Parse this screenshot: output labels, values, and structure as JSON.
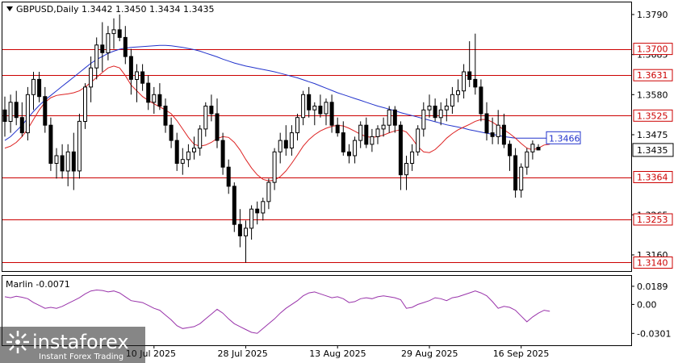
{
  "header": {
    "symbol": "GBPUSD,Daily",
    "ohlc": "1.3442 1.3450 1.3434 1.3435"
  },
  "indicator": {
    "label": "Marlin -0.0071",
    "ticks": [
      "0.0189",
      "0.00",
      "-0.0301"
    ]
  },
  "watermark": {
    "brand": "instaforex",
    "tagline": "Instant Forex Trading"
  },
  "colors": {
    "up_candle": "#ffffff",
    "down_candle": "#000000",
    "ma_blue": "#2233cc",
    "ma_red": "#dd2222",
    "level_line": "#cc0000",
    "oscillator": "#9933aa"
  },
  "chart_data": {
    "type": "candlestick",
    "price_ticks": [
      "1.3790",
      "1.3685",
      "1.3580",
      "1.3475",
      "1.3265",
      "1.3160"
    ],
    "levels": [
      {
        "value": 1.37,
        "label": "1.3700"
      },
      {
        "value": 1.3631,
        "label": "1.3631"
      },
      {
        "value": 1.3525,
        "label": "1.3525"
      },
      {
        "value": 1.3364,
        "label": "1.3364"
      },
      {
        "value": 1.3253,
        "label": "1.3253"
      },
      {
        "value": 1.314,
        "label": "1.3140"
      }
    ],
    "current_price": {
      "value": 1.3435,
      "label": "1.3435"
    },
    "ma_value_label": {
      "value": 1.3466,
      "label": "1.3466"
    },
    "x_labels": [
      "10 Jul 2025",
      "28 Jul 2025",
      "13 Aug 2025",
      "29 Aug 2025",
      "16 Sep 2025"
    ],
    "ohlc": [
      [
        1.354,
        1.3575,
        1.347,
        1.351
      ],
      [
        1.351,
        1.358,
        1.348,
        1.356
      ],
      [
        1.356,
        1.359,
        1.35,
        1.352
      ],
      [
        1.352,
        1.356,
        1.347,
        1.348
      ],
      [
        1.348,
        1.36,
        1.346,
        1.358
      ],
      [
        1.358,
        1.364,
        1.354,
        1.362
      ],
      [
        1.362,
        1.364,
        1.356,
        1.3575
      ],
      [
        1.3575,
        1.36,
        1.348,
        1.35
      ],
      [
        1.35,
        1.352,
        1.338,
        1.34
      ],
      [
        1.34,
        1.344,
        1.336,
        1.342
      ],
      [
        1.342,
        1.345,
        1.336,
        1.338
      ],
      [
        1.338,
        1.345,
        1.334,
        1.343
      ],
      [
        1.343,
        1.348,
        1.333,
        1.338
      ],
      [
        1.338,
        1.353,
        1.336,
        1.351
      ],
      [
        1.351,
        1.361,
        1.349,
        1.36
      ],
      [
        1.36,
        1.368,
        1.356,
        1.365
      ],
      [
        1.365,
        1.373,
        1.362,
        1.371
      ],
      [
        1.371,
        1.377,
        1.364,
        1.369
      ],
      [
        1.369,
        1.376,
        1.367,
        1.374
      ],
      [
        1.374,
        1.378,
        1.37,
        1.375
      ],
      [
        1.375,
        1.379,
        1.372,
        1.373
      ],
      [
        1.373,
        1.376,
        1.366,
        1.368
      ],
      [
        1.368,
        1.37,
        1.358,
        1.362
      ],
      [
        1.362,
        1.366,
        1.356,
        1.364
      ],
      [
        1.364,
        1.366,
        1.359,
        1.361
      ],
      [
        1.361,
        1.363,
        1.354,
        1.356
      ],
      [
        1.356,
        1.36,
        1.353,
        1.358
      ],
      [
        1.358,
        1.361,
        1.354,
        1.355
      ],
      [
        1.355,
        1.357,
        1.348,
        1.35
      ],
      [
        1.35,
        1.352,
        1.344,
        1.346
      ],
      [
        1.346,
        1.348,
        1.338,
        1.34
      ],
      [
        1.34,
        1.344,
        1.337,
        1.341
      ],
      [
        1.341,
        1.345,
        1.339,
        1.343
      ],
      [
        1.343,
        1.347,
        1.341,
        1.344
      ],
      [
        1.344,
        1.35,
        1.342,
        1.349
      ],
      [
        1.349,
        1.356,
        1.347,
        1.355
      ],
      [
        1.355,
        1.358,
        1.351,
        1.353
      ],
      [
        1.353,
        1.357,
        1.344,
        1.346
      ],
      [
        1.346,
        1.348,
        1.337,
        1.339
      ],
      [
        1.339,
        1.341,
        1.332,
        1.334
      ],
      [
        1.334,
        1.335,
        1.322,
        1.324
      ],
      [
        1.324,
        1.328,
        1.318,
        1.321
      ],
      [
        1.321,
        1.325,
        1.314,
        1.323
      ],
      [
        1.323,
        1.329,
        1.32,
        1.328
      ],
      [
        1.328,
        1.33,
        1.324,
        1.327
      ],
      [
        1.327,
        1.331,
        1.325,
        1.33
      ],
      [
        1.33,
        1.336,
        1.328,
        1.335
      ],
      [
        1.335,
        1.344,
        1.333,
        1.343
      ],
      [
        1.343,
        1.348,
        1.34,
        1.346
      ],
      [
        1.346,
        1.35,
        1.342,
        1.344
      ],
      [
        1.344,
        1.35,
        1.342,
        1.348
      ],
      [
        1.348,
        1.353,
        1.346,
        1.352
      ],
      [
        1.352,
        1.359,
        1.35,
        1.358
      ],
      [
        1.358,
        1.36,
        1.352,
        1.354
      ],
      [
        1.354,
        1.356,
        1.35,
        1.355
      ],
      [
        1.355,
        1.358,
        1.352,
        1.353
      ],
      [
        1.353,
        1.357,
        1.35,
        1.356
      ],
      [
        1.356,
        1.358,
        1.348,
        1.35
      ],
      [
        1.35,
        1.352,
        1.347,
        1.348
      ],
      [
        1.348,
        1.351,
        1.342,
        1.343
      ],
      [
        1.343,
        1.345,
        1.34,
        1.342
      ],
      [
        1.342,
        1.347,
        1.34,
        1.346
      ],
      [
        1.346,
        1.351,
        1.344,
        1.35
      ],
      [
        1.35,
        1.352,
        1.344,
        1.345
      ],
      [
        1.345,
        1.349,
        1.343,
        1.347
      ],
      [
        1.347,
        1.35,
        1.345,
        1.349
      ],
      [
        1.349,
        1.352,
        1.347,
        1.35
      ],
      [
        1.35,
        1.355,
        1.348,
        1.354
      ],
      [
        1.354,
        1.355,
        1.348,
        1.35
      ],
      [
        1.35,
        1.351,
        1.333,
        1.337
      ],
      [
        1.337,
        1.342,
        1.333,
        1.34
      ],
      [
        1.34,
        1.345,
        1.338,
        1.343
      ],
      [
        1.343,
        1.35,
        1.342,
        1.349
      ],
      [
        1.349,
        1.356,
        1.347,
        1.354
      ],
      [
        1.354,
        1.358,
        1.352,
        1.355
      ],
      [
        1.355,
        1.357,
        1.351,
        1.352
      ],
      [
        1.352,
        1.356,
        1.35,
        1.354
      ],
      [
        1.354,
        1.357,
        1.351,
        1.355
      ],
      [
        1.355,
        1.36,
        1.353,
        1.358
      ],
      [
        1.358,
        1.362,
        1.356,
        1.359
      ],
      [
        1.359,
        1.366,
        1.357,
        1.364
      ],
      [
        1.364,
        1.372,
        1.36,
        1.362
      ],
      [
        1.362,
        1.374,
        1.358,
        1.36
      ],
      [
        1.36,
        1.362,
        1.351,
        1.353
      ],
      [
        1.353,
        1.356,
        1.346,
        1.348
      ],
      [
        1.348,
        1.352,
        1.345,
        1.347
      ],
      [
        1.347,
        1.354,
        1.345,
        1.35
      ],
      [
        1.35,
        1.353,
        1.344,
        1.345
      ],
      [
        1.345,
        1.346,
        1.338,
        1.342
      ],
      [
        1.342,
        1.344,
        1.331,
        1.333
      ],
      [
        1.333,
        1.34,
        1.331,
        1.339
      ],
      [
        1.339,
        1.344,
        1.337,
        1.343
      ],
      [
        1.343,
        1.346,
        1.341,
        1.345
      ],
      [
        1.3442,
        1.345,
        1.3434,
        1.3435
      ]
    ],
    "ma_slow": [
      1.346,
      1.347,
      1.3485,
      1.35,
      1.3518,
      1.3536,
      1.3552,
      1.3566,
      1.3578,
      1.359,
      1.3602,
      1.3614,
      1.3626,
      1.3638,
      1.365,
      1.3662,
      1.3672,
      1.368,
      1.3688,
      1.3694,
      1.3699,
      1.3702,
      1.3704,
      1.3705,
      1.3706,
      1.3707,
      1.3708,
      1.3709,
      1.3709,
      1.3708,
      1.3706,
      1.3704,
      1.3701,
      1.3698,
      1.3694,
      1.3689,
      1.3684,
      1.3679,
      1.3673,
      1.3668,
      1.3663,
      1.3659,
      1.3655,
      1.3652,
      1.3649,
      1.3646,
      1.3643,
      1.364,
      1.3636,
      1.3632,
      1.3628,
      1.3624,
      1.3619,
      1.3614,
      1.3609,
      1.3603,
      1.3597,
      1.3591,
      1.3585,
      1.358,
      1.3575,
      1.357,
      1.3565,
      1.356,
      1.3555,
      1.355,
      1.3546,
      1.3542,
      1.3538,
      1.3533,
      1.3529,
      1.3525,
      1.3521,
      1.3517,
      1.3513,
      1.3509,
      1.3505,
      1.3501,
      1.3498,
      1.3495,
      1.3492,
      1.3488,
      1.3485,
      1.3482,
      1.3479,
      1.3476,
      1.3473,
      1.347,
      1.3468,
      1.3466,
      1.3466,
      1.3466,
      1.3466,
      1.3466,
      1.3466,
      1.3466
    ],
    "ma_fast": [
      1.344,
      1.3445,
      1.3455,
      1.347,
      1.349,
      1.3515,
      1.354,
      1.356,
      1.3572,
      1.3578,
      1.358,
      1.3582,
      1.3585,
      1.359,
      1.36,
      1.3612,
      1.3625,
      1.3638,
      1.365,
      1.3655,
      1.365,
      1.363,
      1.3605,
      1.359,
      1.3575,
      1.3565,
      1.3556,
      1.3548,
      1.354,
      1.353,
      1.3512,
      1.349,
      1.3468,
      1.345,
      1.3445,
      1.3448,
      1.3455,
      1.3465,
      1.347,
      1.3468,
      1.3455,
      1.3435,
      1.341,
      1.3388,
      1.337,
      1.3358,
      1.3354,
      1.3356,
      1.3365,
      1.338,
      1.34,
      1.3422,
      1.3445,
      1.3462,
      1.3475,
      1.3485,
      1.3492,
      1.3497,
      1.35,
      1.3498,
      1.3492,
      1.3484,
      1.3476,
      1.347,
      1.3468,
      1.347,
      1.3474,
      1.348,
      1.3485,
      1.3488,
      1.3482,
      1.3465,
      1.3444,
      1.343,
      1.3428,
      1.3436,
      1.345,
      1.3466,
      1.3478,
      1.3488,
      1.3495,
      1.3502,
      1.351,
      1.3515,
      1.3515,
      1.3508,
      1.3498,
      1.3488,
      1.3478,
      1.3466,
      1.3452,
      1.344,
      1.3435,
      1.344,
      1.3448,
      1.345
    ],
    "oscillator": {
      "ylim": [
        -0.034,
        0.023
      ],
      "values": [
        0.008,
        0.007,
        0.0085,
        0.0075,
        0.006,
        0.002,
        -0.001,
        -0.004,
        -0.003,
        -0.004,
        -0.002,
        0.001,
        0.004,
        0.007,
        0.011,
        0.014,
        0.015,
        0.0145,
        0.013,
        0.014,
        0.012,
        0.008,
        0.004,
        0.003,
        0.002,
        -0.001,
        -0.004,
        -0.006,
        -0.011,
        -0.016,
        -0.022,
        -0.025,
        -0.024,
        -0.023,
        -0.02,
        -0.015,
        -0.01,
        -0.005,
        -0.009,
        -0.015,
        -0.02,
        -0.023,
        -0.026,
        -0.029,
        -0.03,
        -0.025,
        -0.02,
        -0.015,
        -0.009,
        -0.004,
        0.0,
        0.004,
        0.009,
        0.012,
        0.013,
        0.011,
        0.009,
        0.007,
        0.008,
        0.006,
        0.002,
        0.003,
        0.006,
        0.007,
        0.006,
        0.008,
        0.009,
        0.008,
        0.007,
        0.005,
        -0.004,
        -0.003,
        0.0,
        0.002,
        0.004,
        0.007,
        0.006,
        0.004,
        0.007,
        0.008,
        0.01,
        0.012,
        0.014,
        0.012,
        0.009,
        0.003,
        -0.004,
        -0.002,
        -0.003,
        -0.006,
        -0.012,
        -0.018,
        -0.013,
        -0.009,
        -0.006,
        -0.0071
      ]
    }
  }
}
